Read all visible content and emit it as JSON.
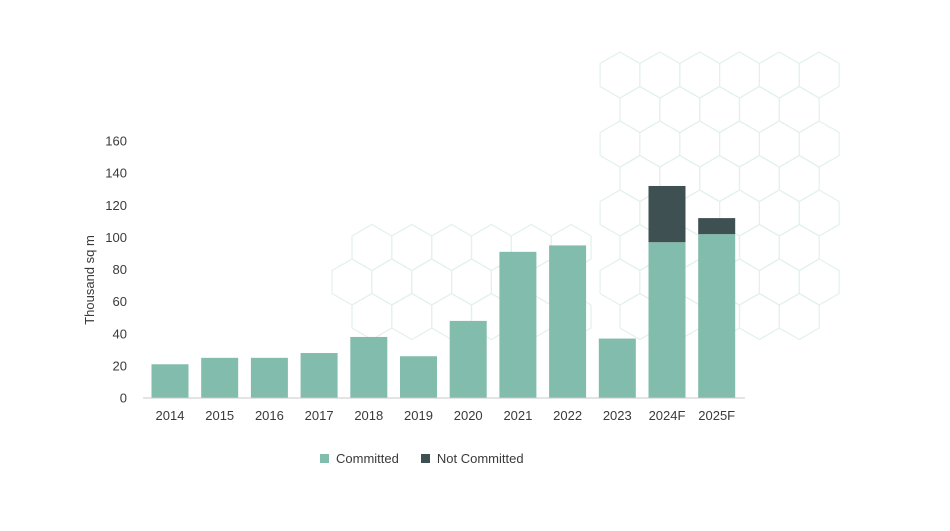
{
  "chart_data": {
    "type": "bar",
    "stacked": true,
    "ylabel": "Thousand sq m",
    "xlabel": "",
    "ylim": [
      0,
      160
    ],
    "yticks": [
      0,
      20,
      40,
      60,
      80,
      100,
      120,
      140,
      160
    ],
    "categories": [
      "2014",
      "2015",
      "2016",
      "2017",
      "2018",
      "2019",
      "2020",
      "2021",
      "2022",
      "2023",
      "2024F",
      "2025F"
    ],
    "series": [
      {
        "name": "Committed",
        "color": "#82bcac",
        "values": [
          21,
          25,
          25,
          28,
          38,
          26,
          48,
          91,
          95,
          37,
          97,
          102
        ]
      },
      {
        "name": "Not Committed",
        "color": "#3f5052",
        "values": [
          0,
          0,
          0,
          0,
          0,
          0,
          0,
          0,
          0,
          0,
          35,
          10
        ]
      }
    ],
    "legend_position": "bottom",
    "grid": false,
    "background_pattern": "hexagon-outline"
  }
}
